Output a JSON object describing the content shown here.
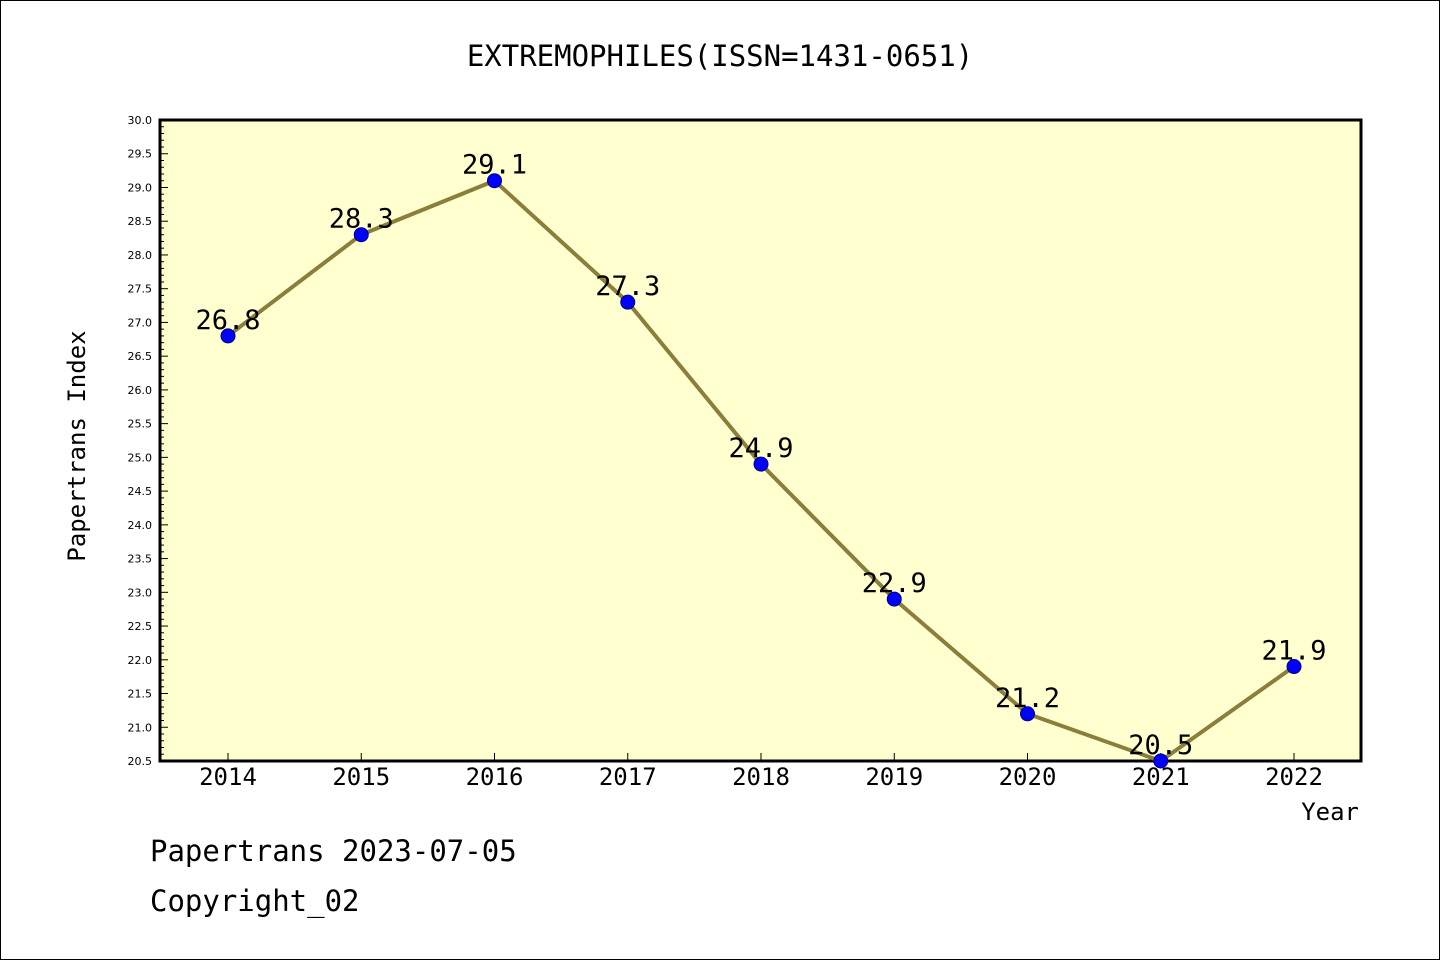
{
  "colors": {
    "plot_background": "#ffffd0",
    "line": "#8b7d3a",
    "marker": "#0000ff",
    "marker_edge": "#000080",
    "axis": "#000000"
  },
  "footer": {
    "line1": "Papertrans 2023-07-05",
    "line2": "Copyright_02"
  },
  "chart_data": {
    "type": "line",
    "title": "EXTREMOPHILES(ISSN=1431-0651)",
    "xlabel": "Year",
    "ylabel": "Papertrans Index",
    "categories": [
      "2014",
      "2015",
      "2016",
      "2017",
      "2018",
      "2019",
      "2020",
      "2021",
      "2022"
    ],
    "series": [
      {
        "values": [
          26.8,
          28.3,
          29.1,
          27.3,
          24.9,
          22.9,
          21.2,
          20.5,
          21.9
        ],
        "labels": [
          "26.8",
          "28.3",
          "29.1",
          "27.3",
          "24.9",
          "22.9",
          "21.2",
          "20.5",
          "21.9"
        ]
      }
    ],
    "ylim": [
      20.5,
      30.0
    ],
    "y_ticks": [
      "20.5",
      "21.0",
      "21.5",
      "22.0",
      "22.5",
      "23.0",
      "23.5",
      "24.0",
      "24.5",
      "25.0",
      "25.5",
      "26.0",
      "26.5",
      "27.0",
      "27.5",
      "28.0",
      "28.5",
      "29.0",
      "29.5",
      "30.0"
    ],
    "grid": false,
    "legend": "none"
  }
}
